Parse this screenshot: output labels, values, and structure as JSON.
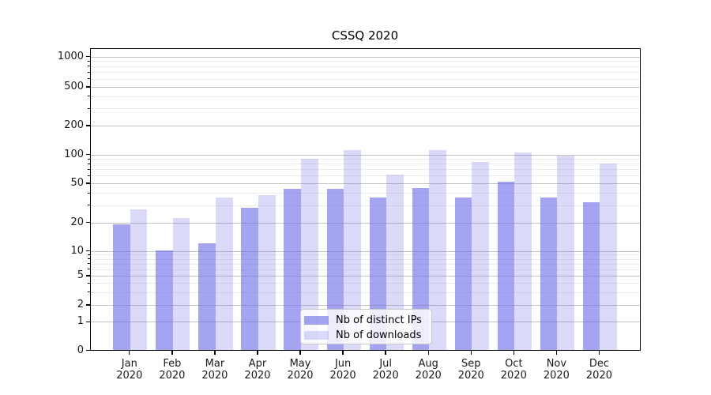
{
  "chart_data": {
    "type": "bar",
    "title": "CSSQ 2020",
    "categories": [
      "Jan 2020",
      "Feb 2020",
      "Mar 2020",
      "Apr 2020",
      "May 2020",
      "Jun 2020",
      "Jul 2020",
      "Aug 2020",
      "Sep 2020",
      "Oct 2020",
      "Nov 2020",
      "Dec 2020"
    ],
    "series": [
      {
        "name": "Nb of distinct IPs",
        "color": "rgba(104,104,230,0.60)",
        "values": [
          19,
          10,
          12,
          28,
          44,
          44,
          36,
          45,
          36,
          52,
          36,
          32
        ]
      },
      {
        "name": "Nb of downloads",
        "color": "rgba(104,104,230,0.24)",
        "values": [
          27,
          22,
          36,
          38,
          90,
          110,
          61,
          110,
          83,
          104,
          97,
          80
        ]
      }
    ],
    "yticks": [
      0,
      1,
      2,
      5,
      10,
      20,
      50,
      100,
      200,
      500,
      1000
    ],
    "yticks_minor": [
      3,
      4,
      6,
      7,
      8,
      9,
      30,
      40,
      60,
      70,
      80,
      90,
      300,
      400,
      600,
      700,
      800,
      900
    ],
    "ylim": [
      0,
      1230
    ],
    "yscale": "log-like with 0 baseline",
    "grid": "horizontal major + minor",
    "legend_position": "lower center",
    "colors": {
      "major_grid": "#c2c2c2",
      "minor_grid": "#ebebeb",
      "axis": "#000000",
      "text": "#1a1a1a",
      "background": "#ffffff"
    }
  }
}
